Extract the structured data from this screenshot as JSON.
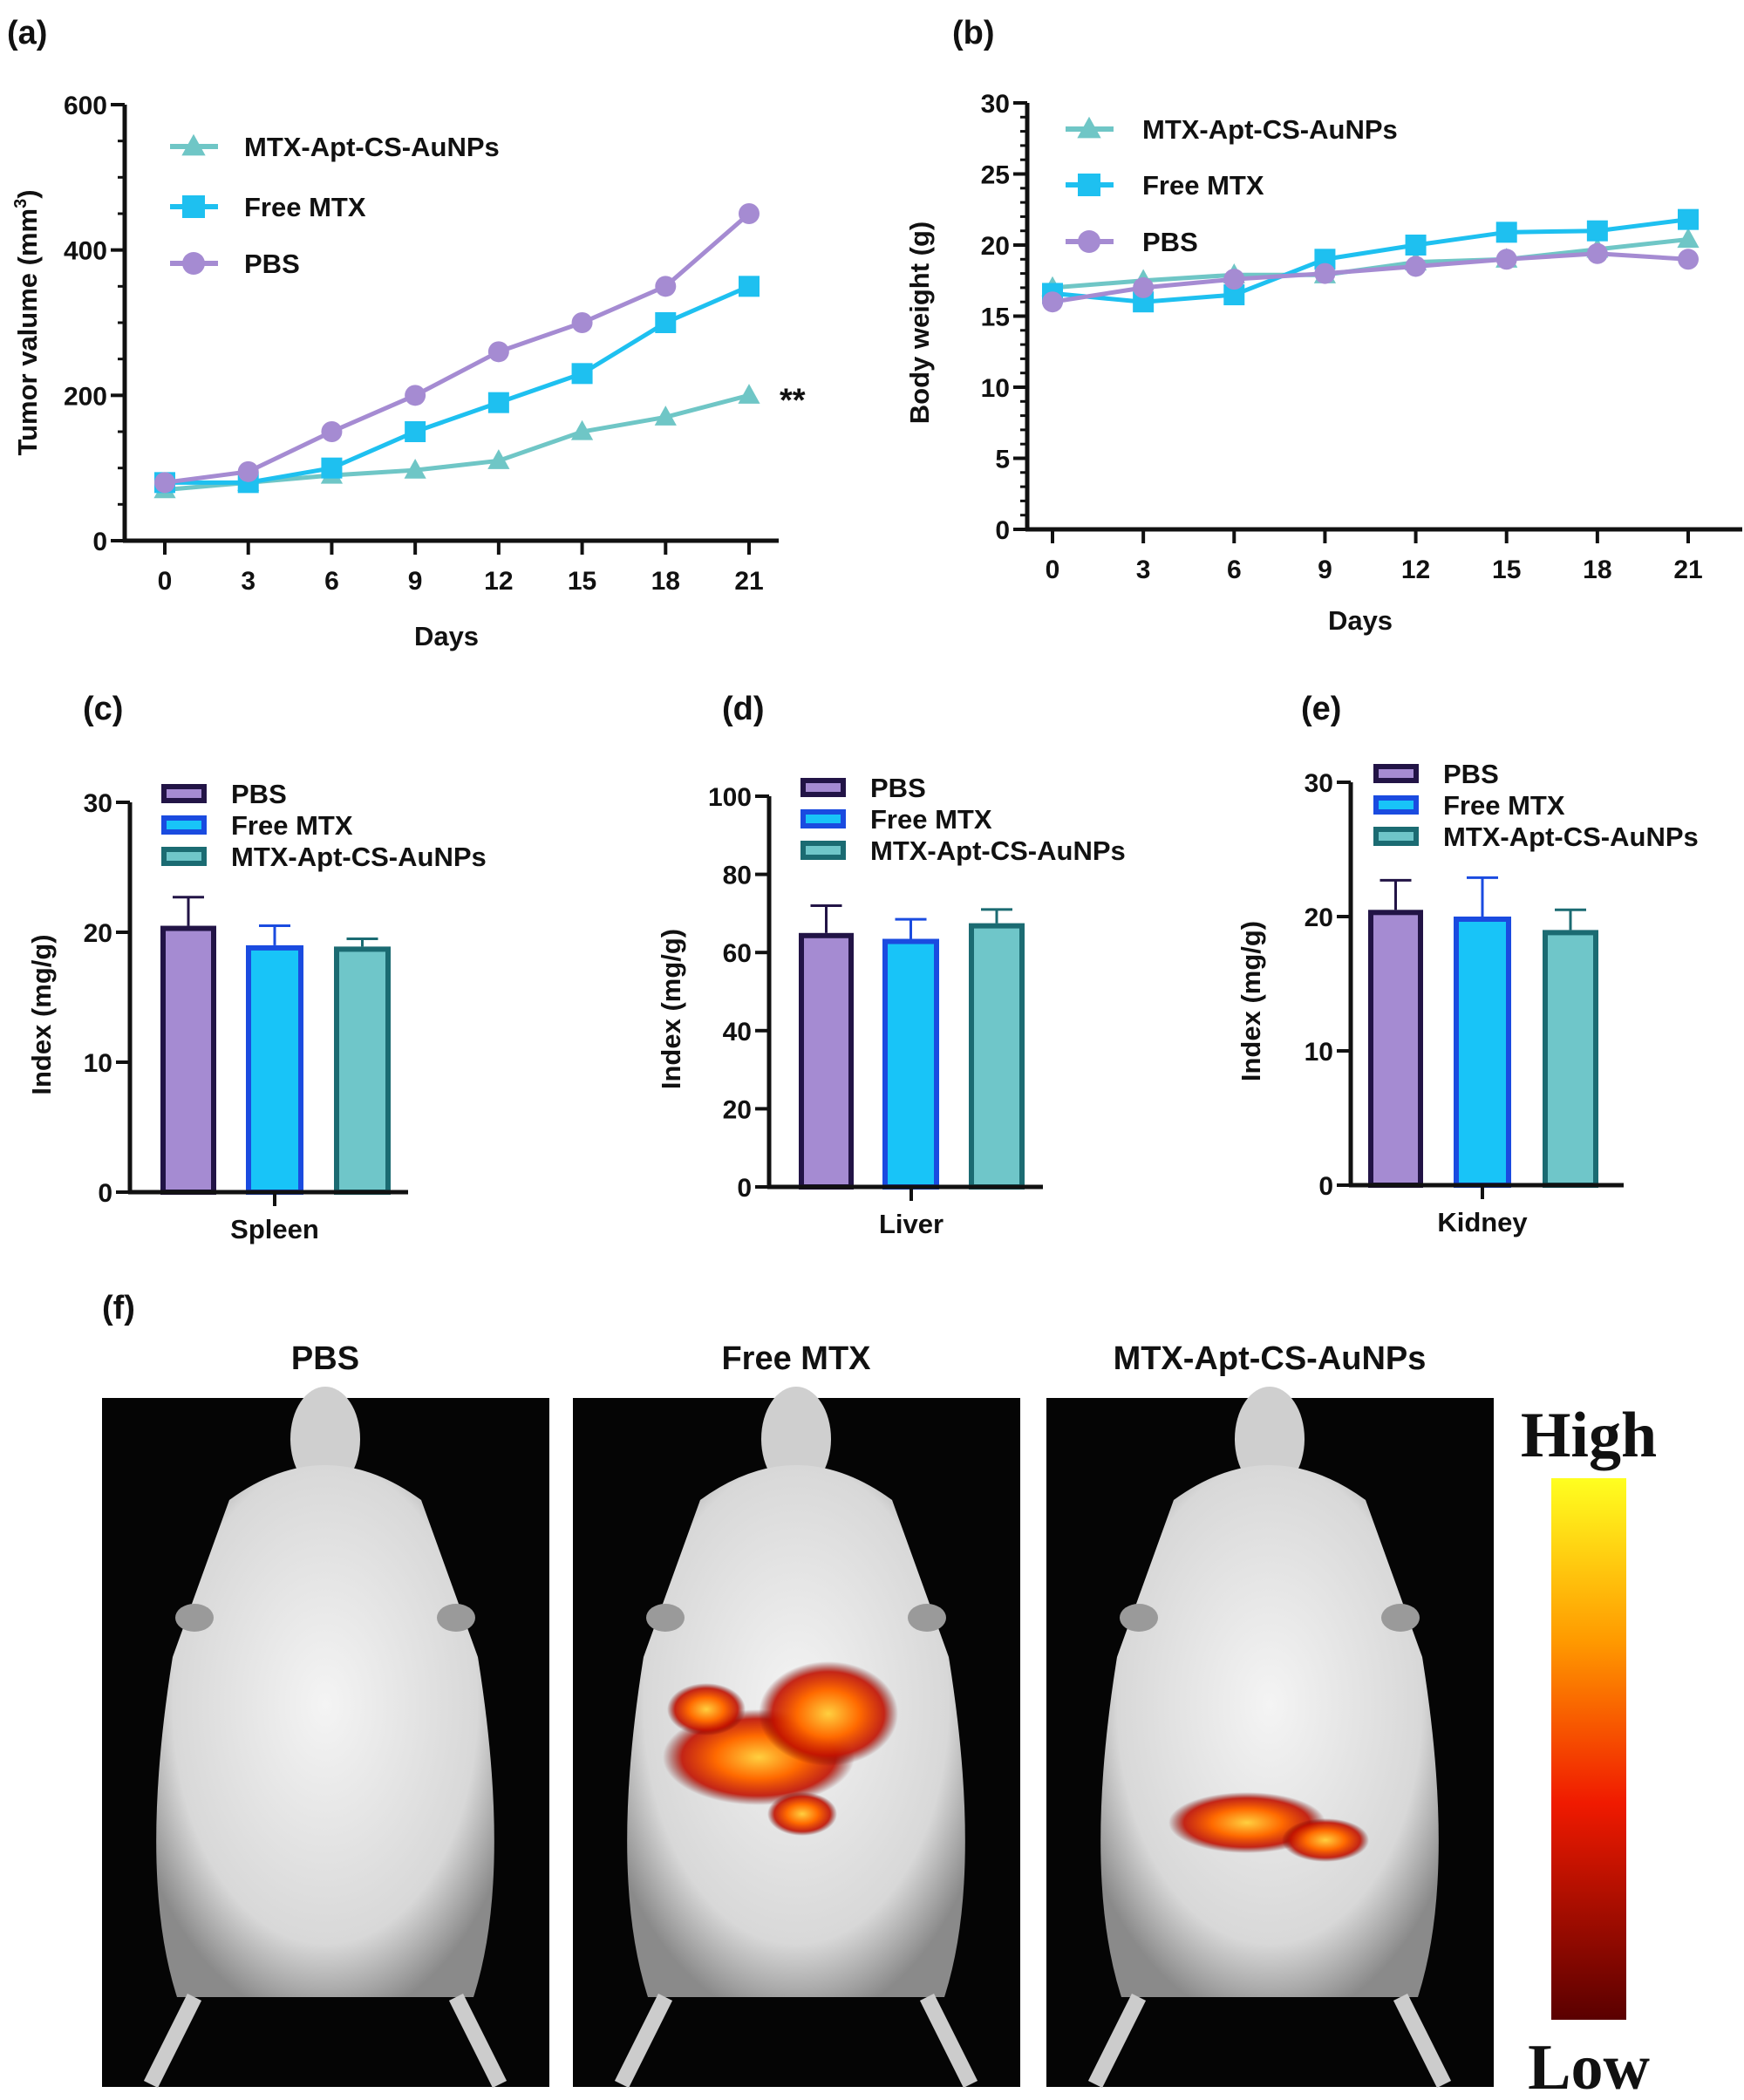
{
  "colors": {
    "pbs_line": "#a58bd2",
    "free_line": "#1ec0f0",
    "apt_line": "#6fc6c6",
    "pbs_bar": "#a58bd2",
    "pbs_edge": "#221446",
    "free_bar": "#18c4f8",
    "free_edge": "#1a4be0",
    "apt_bar": "#6fc6c9",
    "apt_edge": "#1b6b72"
  },
  "chart_data": [
    {
      "panel": "(a)",
      "type": "line",
      "xlabel": "Days",
      "ylabel": "Tumor valume (mm³)",
      "ylabel_main": "Tumor valume (mm",
      "ylabel_sup": "3",
      "ylabel_end": ")",
      "ylim": [
        0,
        600
      ],
      "yticks": [
        "0",
        "200",
        "400",
        "600"
      ],
      "x": [
        0,
        3,
        6,
        9,
        12,
        15,
        18,
        21
      ],
      "xticks": [
        "0",
        "3",
        "6",
        "9",
        "12",
        "15",
        "18",
        "21"
      ],
      "legend": "top-left",
      "annotation": "**",
      "series": [
        {
          "name": "MTX-Apt-CS-AuNPs",
          "marker": "triangle",
          "values": [
            70,
            80,
            90,
            97,
            110,
            150,
            170,
            200
          ]
        },
        {
          "name": "Free MTX",
          "marker": "square",
          "values": [
            80,
            80,
            100,
            150,
            190,
            230,
            300,
            350
          ]
        },
        {
          "name": "PBS",
          "marker": "circle",
          "values": [
            80,
            95,
            150,
            200,
            260,
            300,
            350,
            450
          ]
        }
      ]
    },
    {
      "panel": "(b)",
      "type": "line",
      "xlabel": "Days",
      "ylabel": "Body weight  (g)",
      "ylim": [
        0,
        30
      ],
      "yticks": [
        "0",
        "5",
        "10",
        "15",
        "20",
        "25",
        "30"
      ],
      "x": [
        0,
        3,
        6,
        9,
        12,
        15,
        18,
        21
      ],
      "xticks": [
        "0",
        "3",
        "6",
        "9",
        "12",
        "15",
        "18",
        "21"
      ],
      "legend": "top-left",
      "series": [
        {
          "name": "MTX-Apt-CS-AuNPs",
          "marker": "triangle",
          "values": [
            17,
            17.5,
            17.9,
            17.9,
            18.8,
            19,
            19.7,
            20.4
          ]
        },
        {
          "name": "Free MTX",
          "marker": "square",
          "values": [
            16.6,
            16,
            16.5,
            19,
            20,
            20.9,
            21,
            21.8
          ]
        },
        {
          "name": "PBS",
          "marker": "circle",
          "values": [
            16,
            17,
            17.6,
            18,
            18.5,
            19,
            19.4,
            19
          ]
        }
      ]
    },
    {
      "panel": "(c)",
      "type": "bar",
      "categories": [
        "Spleen"
      ],
      "ylabel": "Index (mg/g)",
      "ylim": [
        0,
        30
      ],
      "yticks": [
        "0",
        "10",
        "20",
        "30"
      ],
      "legend": "top-left",
      "series": [
        {
          "name": "PBS",
          "values": [
            20.5
          ],
          "error": [
            2.2
          ]
        },
        {
          "name": "Free MTX",
          "values": [
            19
          ],
          "error": [
            1.5
          ]
        },
        {
          "name": "MTX-Apt-CS-AuNPs",
          "values": [
            18.9
          ],
          "error": [
            0.6
          ]
        }
      ]
    },
    {
      "panel": "(d)",
      "type": "bar",
      "categories": [
        "Liver"
      ],
      "ylabel": "Index (mg/g)",
      "ylim": [
        0,
        100
      ],
      "yticks": [
        "0",
        "20",
        "40",
        "60",
        "80",
        "100"
      ],
      "legend": "top-left",
      "series": [
        {
          "name": "PBS",
          "values": [
            65
          ],
          "error": [
            7
          ]
        },
        {
          "name": "Free MTX",
          "values": [
            63.5
          ],
          "error": [
            5
          ]
        },
        {
          "name": "MTX-Apt-CS-AuNPs",
          "values": [
            67.5
          ],
          "error": [
            3.5
          ]
        }
      ]
    },
    {
      "panel": "(e)",
      "type": "bar",
      "categories": [
        "Kidney"
      ],
      "ylabel": "Index (mg/g)",
      "ylim": [
        0,
        30
      ],
      "yticks": [
        "0",
        "10",
        "20",
        "30"
      ],
      "legend": "top-left",
      "series": [
        {
          "name": "PBS",
          "values": [
            20.5
          ],
          "error": [
            2.2
          ]
        },
        {
          "name": "Free MTX",
          "values": [
            20
          ],
          "error": [
            2.9
          ]
        },
        {
          "name": "MTX-Apt-CS-AuNPs",
          "values": [
            19
          ],
          "error": [
            1.5
          ]
        }
      ]
    }
  ],
  "imaging": {
    "panel": "(f)",
    "groups": [
      "PBS",
      "Free MTX",
      "MTX-Apt-CS-AuNPs"
    ],
    "signal_levels": [
      0,
      0.8,
      0.5
    ],
    "colorbar_high": "High",
    "colorbar_low": "Low"
  }
}
